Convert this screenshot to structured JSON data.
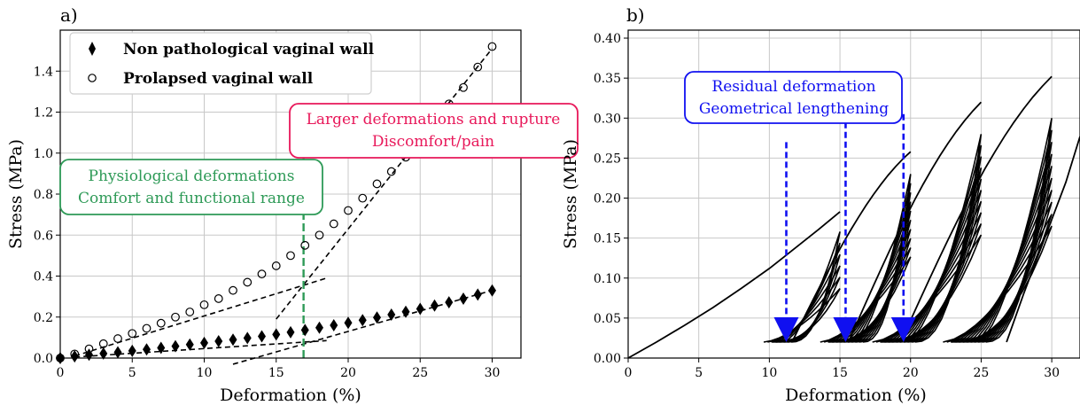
{
  "colors": {
    "green": "#2e9a57",
    "red": "#e8185a",
    "blue": "#1010f0",
    "grid": "#c8c8c8"
  },
  "chart_data": [
    {
      "type": "scatter",
      "panel_label": "a)",
      "xlabel": "Deformation (%)",
      "ylabel": "Stress (MPa)",
      "xlim": [
        0,
        32
      ],
      "ylim": [
        0,
        1.6
      ],
      "xticks": [
        0,
        5,
        10,
        15,
        20,
        25,
        30
      ],
      "yticks": [
        0.0,
        0.2,
        0.4,
        0.6,
        0.8,
        1.0,
        1.2,
        1.4
      ],
      "ytick_labels": [
        "0.0",
        "0.2",
        "0.4",
        "0.6",
        "0.8",
        "1.0",
        "1.2",
        "1.4"
      ],
      "grid": true,
      "legend_position": "top-left",
      "series": [
        {
          "name": "Non pathological vaginal wall",
          "marker": "diamond-filled",
          "x": [
            0,
            1,
            2,
            3,
            4,
            5,
            6,
            7,
            8,
            9,
            10,
            11,
            12,
            13,
            14,
            15,
            16,
            17,
            18,
            19,
            20,
            21,
            22,
            23,
            24,
            25,
            26,
            27,
            28,
            29,
            30
          ],
          "y": [
            0.0,
            0.008,
            0.016,
            0.022,
            0.028,
            0.035,
            0.042,
            0.05,
            0.058,
            0.066,
            0.074,
            0.082,
            0.09,
            0.098,
            0.106,
            0.115,
            0.126,
            0.137,
            0.148,
            0.16,
            0.172,
            0.185,
            0.198,
            0.212,
            0.226,
            0.24,
            0.256,
            0.272,
            0.29,
            0.31,
            0.33
          ]
        },
        {
          "name": "Prolapsed vaginal wall",
          "marker": "circle-open",
          "x": [
            0,
            1,
            2,
            3,
            4,
            5,
            6,
            7,
            8,
            9,
            10,
            11,
            12,
            13,
            14,
            15,
            16,
            17,
            18,
            19,
            20,
            21,
            22,
            23,
            24,
            25,
            26,
            27,
            28,
            29,
            30
          ],
          "y": [
            0.0,
            0.02,
            0.045,
            0.07,
            0.095,
            0.12,
            0.145,
            0.17,
            0.2,
            0.225,
            0.26,
            0.29,
            0.33,
            0.37,
            0.41,
            0.45,
            0.5,
            0.55,
            0.6,
            0.655,
            0.72,
            0.78,
            0.85,
            0.91,
            0.98,
            1.05,
            1.15,
            1.24,
            1.32,
            1.42,
            1.52
          ]
        }
      ],
      "trend_lines": [
        {
          "x": [
            1,
            18.5
          ],
          "y": [
            0.01,
            0.39
          ]
        },
        {
          "x": [
            15,
            30
          ],
          "y": [
            0.19,
            1.51
          ]
        },
        {
          "x": [
            1,
            18.5
          ],
          "y": [
            0.005,
            0.085
          ]
        },
        {
          "x": [
            12,
            30
          ],
          "y": [
            -0.03,
            0.33
          ]
        }
      ],
      "vline": {
        "x": 16.9,
        "ylim": [
          0,
          1.1
        ]
      },
      "annotations": [
        {
          "lines": [
            "Physiological deformations",
            "Comfort and functional range"
          ],
          "color": "green"
        },
        {
          "lines": [
            "Larger deformations and rupture",
            "Discomfort/pain"
          ],
          "color": "red"
        }
      ]
    },
    {
      "type": "line",
      "panel_label": "b)",
      "xlabel": "Deformation (%)",
      "ylabel": "Stress (MPa)",
      "xlim": [
        0,
        32
      ],
      "ylim": [
        0,
        0.41
      ],
      "xticks": [
        0,
        5,
        10,
        15,
        20,
        25,
        30
      ],
      "yticks": [
        0.0,
        0.05,
        0.1,
        0.15,
        0.2,
        0.25,
        0.3,
        0.35,
        0.4
      ],
      "ytick_labels": [
        "0.00",
        "0.05",
        "0.10",
        "0.15",
        "0.20",
        "0.25",
        "0.30",
        "0.35",
        "0.40"
      ],
      "grid": true,
      "first_loading": {
        "x": [
          0,
          2,
          4,
          6,
          8,
          10,
          12,
          13.5,
          15
        ],
        "y": [
          0,
          0.02,
          0.041,
          0.063,
          0.087,
          0.112,
          0.14,
          0.161,
          0.183
        ]
      },
      "blocks": [
        {
          "start_min": 9.6,
          "peak_x": 15,
          "peak_y": 0.183,
          "n": 6,
          "max_repeat_y": 0.158
        },
        {
          "start_min": 13.6,
          "peak_x": 20,
          "peak_y": 0.258,
          "n": 10,
          "max_repeat_y": 0.23
        },
        {
          "start_min": 17.3,
          "peak_x": 25,
          "peak_y": 0.32,
          "n": 10,
          "max_repeat_y": 0.28
        },
        {
          "start_min": 22.3,
          "peak_x": 30,
          "peak_y": 0.352,
          "n": 10,
          "max_repeat_y": 0.3
        }
      ],
      "tail": {
        "x": [
          26.8,
          28,
          29.5,
          31,
          32
        ],
        "y": [
          0.02,
          0.08,
          0.15,
          0.22,
          0.277
        ]
      },
      "arrows": [
        {
          "x": 11.2,
          "y_top": 0.27,
          "y_tip": 0.02
        },
        {
          "x": 15.4,
          "y_top": 0.295,
          "y_tip": 0.02
        },
        {
          "x": 19.5,
          "y_top": 0.305,
          "y_tip": 0.02
        }
      ],
      "annotation": {
        "lines": [
          "Residual deformation",
          "Geometrical lengthening"
        ],
        "color": "blue"
      }
    }
  ]
}
